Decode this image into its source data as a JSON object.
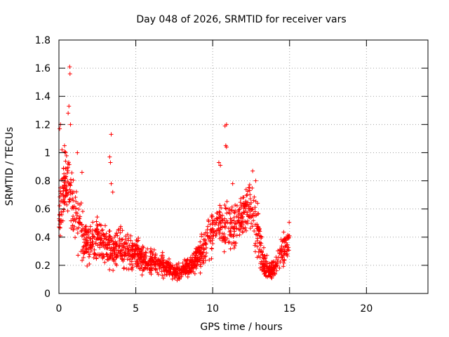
{
  "chart_data": {
    "type": "scatter",
    "title": "Day 048 of 2026, SRMTID for receiver vars",
    "xlabel": "GPS time / hours",
    "ylabel": "SRMTID / TECUs",
    "xlim": [
      0,
      24
    ],
    "ylim": [
      0,
      1.8
    ],
    "xticks": [
      0,
      5,
      10,
      15,
      20
    ],
    "xtick_labels": [
      "0",
      "5",
      "10",
      "15",
      "20"
    ],
    "yticks": [
      0,
      0.2,
      0.4,
      0.6,
      0.8,
      1,
      1.2,
      1.4,
      1.6,
      1.8
    ],
    "ytick_labels": [
      "0",
      "0.2",
      "0.4",
      "0.6",
      "0.8",
      "1",
      "1.2",
      "1.4",
      "1.6",
      "1.8"
    ],
    "grid": true,
    "marker": "+",
    "series": [
      {
        "name": "vars",
        "color": "#ff0000",
        "note": "approximate profile; dense cloud of ~2000 points, 0-15 h",
        "profile": [
          [
            0.0,
            0.55,
            0.3
          ],
          [
            0.3,
            0.75,
            0.35
          ],
          [
            0.6,
            0.8,
            0.4
          ],
          [
            0.9,
            0.6,
            0.35
          ],
          [
            1.2,
            0.5,
            0.3
          ],
          [
            1.6,
            0.4,
            0.25
          ],
          [
            2.0,
            0.35,
            0.2
          ],
          [
            2.5,
            0.38,
            0.22
          ],
          [
            3.0,
            0.35,
            0.22
          ],
          [
            3.5,
            0.32,
            0.2
          ],
          [
            4.0,
            0.33,
            0.2
          ],
          [
            4.5,
            0.3,
            0.18
          ],
          [
            5.0,
            0.27,
            0.15
          ],
          [
            5.5,
            0.25,
            0.15
          ],
          [
            6.0,
            0.22,
            0.13
          ],
          [
            6.5,
            0.22,
            0.12
          ],
          [
            7.0,
            0.18,
            0.1
          ],
          [
            7.5,
            0.15,
            0.08
          ],
          [
            8.0,
            0.16,
            0.08
          ],
          [
            8.5,
            0.2,
            0.1
          ],
          [
            9.0,
            0.25,
            0.14
          ],
          [
            9.5,
            0.33,
            0.18
          ],
          [
            10.0,
            0.45,
            0.22
          ],
          [
            10.5,
            0.5,
            0.25
          ],
          [
            11.0,
            0.45,
            0.25
          ],
          [
            11.5,
            0.5,
            0.25
          ],
          [
            12.0,
            0.6,
            0.25
          ],
          [
            12.5,
            0.65,
            0.25
          ],
          [
            13.0,
            0.4,
            0.25
          ],
          [
            13.3,
            0.22,
            0.15
          ],
          [
            13.7,
            0.15,
            0.08
          ],
          [
            14.0,
            0.18,
            0.1
          ],
          [
            14.5,
            0.28,
            0.15
          ],
          [
            15.0,
            0.4,
            0.18
          ]
        ],
        "outliers": [
          [
            0.7,
            1.61
          ],
          [
            0.72,
            1.56
          ],
          [
            0.65,
            1.33
          ],
          [
            0.6,
            1.28
          ],
          [
            0.1,
            1.2
          ],
          [
            0.05,
            1.17
          ],
          [
            0.75,
            1.2
          ],
          [
            0.2,
            1.02
          ],
          [
            0.4,
            1.0
          ],
          [
            1.2,
            1.0
          ],
          [
            3.4,
            1.13
          ],
          [
            3.3,
            0.97
          ],
          [
            3.35,
            0.93
          ],
          [
            3.4,
            0.78
          ],
          [
            3.5,
            0.72
          ],
          [
            10.9,
            1.2
          ],
          [
            10.8,
            1.19
          ],
          [
            10.85,
            1.05
          ],
          [
            10.9,
            1.04
          ],
          [
            10.4,
            0.93
          ],
          [
            10.5,
            0.91
          ],
          [
            11.3,
            0.78
          ],
          [
            12.6,
            0.87
          ],
          [
            12.8,
            0.8
          ],
          [
            1.5,
            0.86
          ]
        ]
      }
    ]
  }
}
